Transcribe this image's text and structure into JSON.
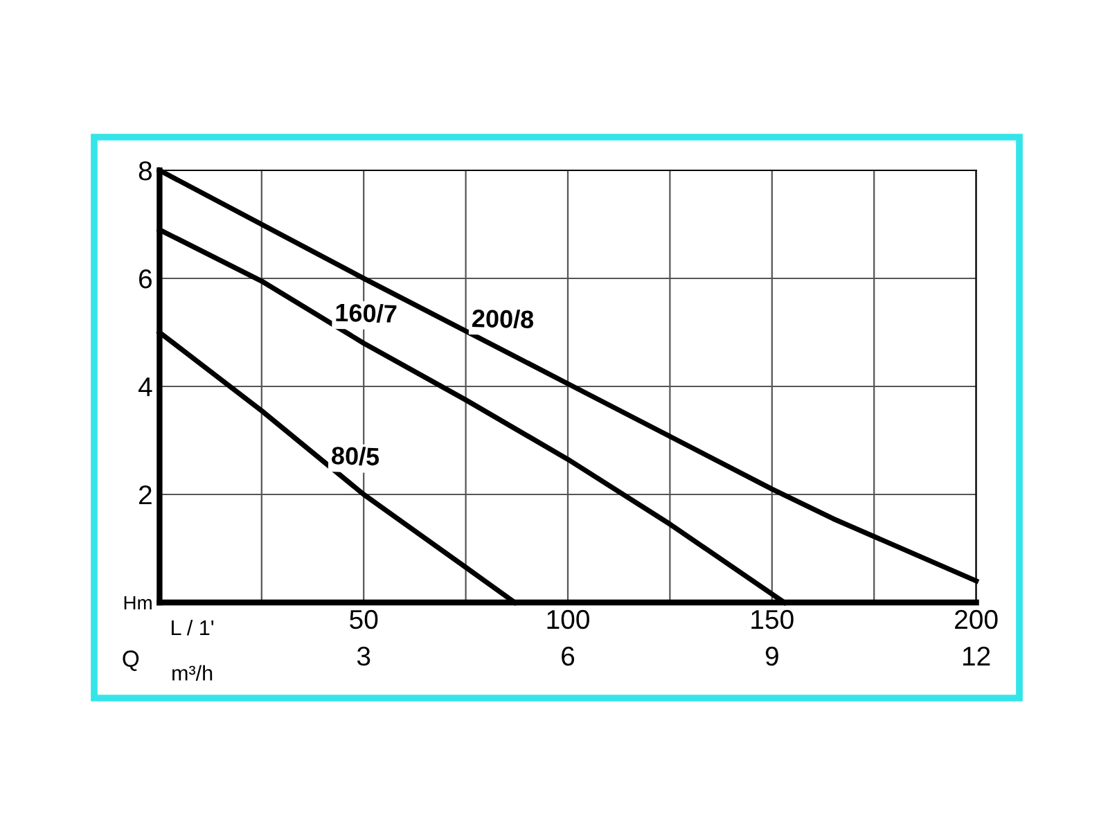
{
  "chart_data": {
    "type": "line",
    "xlabel": "L / 1'",
    "x2label": "m³/h",
    "annotations": [
      "Q"
    ],
    "xlim": [
      0,
      200
    ],
    "xticks": [
      {
        "value": 25,
        "label": null
      },
      50,
      {
        "value": 75,
        "label": null
      },
      100,
      {
        "value": 125,
        "label": null
      },
      150,
      {
        "value": 175,
        "label": null
      },
      200
    ],
    "x2lim": [
      0,
      12
    ],
    "x2ticks": [
      3,
      6,
      9,
      12
    ],
    "ylim": [
      0,
      8
    ],
    "yticks": [
      {
        "value": 0,
        "label": "Hm"
      },
      2,
      4,
      6,
      8
    ],
    "grid": true,
    "line_style": "solid",
    "marker": "none",
    "series": [
      {
        "name": "200/8",
        "color": "#000000",
        "x": [
          0,
          50,
          100,
          150,
          165,
          200
        ],
        "values": [
          8,
          6,
          4.05,
          2.1,
          1.55,
          0.4
        ]
      },
      {
        "name": "160/7",
        "color": "#000000",
        "x": [
          0,
          25,
          50,
          75,
          100,
          125,
          153
        ],
        "values": [
          6.9,
          5.95,
          4.8,
          3.75,
          2.65,
          1.45,
          0
        ]
      },
      {
        "name": "80/5",
        "color": "#000000",
        "x": [
          0,
          25,
          50,
          75,
          87
        ],
        "values": [
          5,
          3.55,
          2.0,
          0.65,
          0
        ]
      }
    ]
  }
}
